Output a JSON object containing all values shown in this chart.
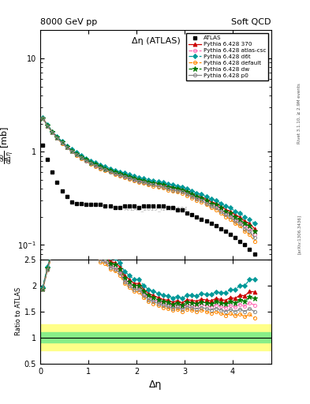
{
  "title_top_left": "8000 GeV pp",
  "title_top_right": "Soft QCD",
  "plot_title": "Δη (ATLAS)",
  "xlabel": "Δη",
  "right_label_top": "Rivet 3.1.10, ≥ 2.9M events",
  "right_label_bottom": "[arXiv:1306.3436]",
  "watermark": "ATLAS_2019_I1762584",
  "atlas_x": [
    0.05,
    0.15,
    0.25,
    0.35,
    0.45,
    0.55,
    0.65,
    0.75,
    0.85,
    0.95,
    1.05,
    1.15,
    1.25,
    1.35,
    1.45,
    1.55,
    1.65,
    1.75,
    1.85,
    1.95,
    2.05,
    2.15,
    2.25,
    2.35,
    2.45,
    2.55,
    2.65,
    2.75,
    2.85,
    2.95,
    3.05,
    3.15,
    3.25,
    3.35,
    3.45,
    3.55,
    3.65,
    3.75,
    3.85,
    3.95,
    4.05,
    4.15,
    4.25,
    4.35,
    4.45
  ],
  "atlas_y": [
    1.18,
    0.82,
    0.61,
    0.47,
    0.38,
    0.33,
    0.29,
    0.28,
    0.28,
    0.27,
    0.27,
    0.27,
    0.27,
    0.26,
    0.26,
    0.25,
    0.25,
    0.26,
    0.26,
    0.26,
    0.25,
    0.26,
    0.26,
    0.26,
    0.26,
    0.26,
    0.25,
    0.25,
    0.24,
    0.24,
    0.22,
    0.21,
    0.2,
    0.19,
    0.18,
    0.17,
    0.16,
    0.15,
    0.14,
    0.13,
    0.12,
    0.11,
    0.1,
    0.09,
    0.08
  ],
  "mc_x": [
    0.05,
    0.15,
    0.25,
    0.35,
    0.45,
    0.55,
    0.65,
    0.75,
    0.85,
    0.95,
    1.05,
    1.15,
    1.25,
    1.35,
    1.45,
    1.55,
    1.65,
    1.75,
    1.85,
    1.95,
    2.05,
    2.15,
    2.25,
    2.35,
    2.45,
    2.55,
    2.65,
    2.75,
    2.85,
    2.95,
    3.05,
    3.15,
    3.25,
    3.35,
    3.45,
    3.55,
    3.65,
    3.75,
    3.85,
    3.95,
    4.05,
    4.15,
    4.25,
    4.35,
    4.45
  ],
  "py370_y": [
    2.3,
    1.92,
    1.63,
    1.43,
    1.27,
    1.14,
    1.04,
    0.96,
    0.89,
    0.83,
    0.78,
    0.74,
    0.7,
    0.67,
    0.64,
    0.61,
    0.59,
    0.57,
    0.55,
    0.53,
    0.51,
    0.5,
    0.48,
    0.47,
    0.46,
    0.45,
    0.43,
    0.42,
    0.41,
    0.4,
    0.38,
    0.36,
    0.34,
    0.33,
    0.31,
    0.29,
    0.28,
    0.26,
    0.24,
    0.23,
    0.21,
    0.2,
    0.18,
    0.17,
    0.15
  ],
  "py_atlas_csc_y": [
    2.28,
    1.9,
    1.61,
    1.41,
    1.25,
    1.12,
    1.02,
    0.94,
    0.87,
    0.81,
    0.76,
    0.72,
    0.68,
    0.65,
    0.62,
    0.59,
    0.57,
    0.55,
    0.53,
    0.51,
    0.49,
    0.48,
    0.46,
    0.45,
    0.44,
    0.43,
    0.41,
    0.4,
    0.39,
    0.38,
    0.36,
    0.34,
    0.32,
    0.31,
    0.29,
    0.27,
    0.26,
    0.24,
    0.22,
    0.21,
    0.19,
    0.18,
    0.16,
    0.15,
    0.13
  ],
  "py_d6t_y": [
    2.32,
    1.94,
    1.65,
    1.45,
    1.29,
    1.16,
    1.06,
    0.98,
    0.91,
    0.85,
    0.8,
    0.76,
    0.72,
    0.69,
    0.66,
    0.63,
    0.61,
    0.59,
    0.57,
    0.55,
    0.53,
    0.52,
    0.5,
    0.49,
    0.48,
    0.47,
    0.45,
    0.44,
    0.43,
    0.42,
    0.4,
    0.38,
    0.36,
    0.35,
    0.33,
    0.31,
    0.3,
    0.28,
    0.26,
    0.25,
    0.23,
    0.22,
    0.2,
    0.19,
    0.17
  ],
  "py_default_y": [
    2.26,
    1.88,
    1.59,
    1.39,
    1.23,
    1.1,
    1.0,
    0.92,
    0.85,
    0.79,
    0.74,
    0.7,
    0.66,
    0.63,
    0.6,
    0.57,
    0.55,
    0.53,
    0.51,
    0.49,
    0.47,
    0.46,
    0.44,
    0.43,
    0.42,
    0.41,
    0.39,
    0.38,
    0.37,
    0.36,
    0.34,
    0.32,
    0.3,
    0.29,
    0.27,
    0.25,
    0.24,
    0.22,
    0.2,
    0.19,
    0.17,
    0.16,
    0.14,
    0.13,
    0.11
  ],
  "py_dw_y": [
    2.29,
    1.91,
    1.62,
    1.42,
    1.26,
    1.13,
    1.03,
    0.95,
    0.88,
    0.82,
    0.77,
    0.73,
    0.69,
    0.66,
    0.63,
    0.6,
    0.58,
    0.56,
    0.54,
    0.52,
    0.5,
    0.49,
    0.47,
    0.46,
    0.45,
    0.44,
    0.42,
    0.41,
    0.4,
    0.39,
    0.37,
    0.35,
    0.33,
    0.32,
    0.3,
    0.28,
    0.27,
    0.25,
    0.23,
    0.22,
    0.2,
    0.19,
    0.17,
    0.16,
    0.14
  ],
  "py_p0_y": [
    2.27,
    1.89,
    1.6,
    1.4,
    1.24,
    1.11,
    1.01,
    0.93,
    0.86,
    0.8,
    0.75,
    0.71,
    0.67,
    0.64,
    0.61,
    0.58,
    0.56,
    0.54,
    0.52,
    0.5,
    0.48,
    0.47,
    0.45,
    0.44,
    0.43,
    0.42,
    0.4,
    0.39,
    0.38,
    0.37,
    0.35,
    0.33,
    0.31,
    0.3,
    0.28,
    0.26,
    0.25,
    0.23,
    0.21,
    0.2,
    0.18,
    0.17,
    0.15,
    0.14,
    0.12
  ],
  "series_colors": [
    "#cc0000",
    "#ff69b4",
    "#009999",
    "#ff8800",
    "#007700",
    "#888888"
  ],
  "series_labels": [
    "Pythia 6.428 370",
    "Pythia 6.428 atlas-csc",
    "Pythia 6.428 d6t",
    "Pythia 6.428 default",
    "Pythia 6.428 dw",
    "Pythia 6.428 p0"
  ],
  "series_markers": [
    "^",
    "o",
    "D",
    "o",
    "*",
    "o"
  ],
  "series_linestyles": [
    "-",
    "--",
    "--",
    "--",
    "--",
    "-"
  ],
  "ratio_ylim": [
    0.5,
    2.5
  ],
  "ratio_yticks": [
    0.5,
    1.0,
    1.5,
    2.0,
    2.5
  ],
  "ratio_yticklabels": [
    "0.5",
    "1",
    "1.5",
    "2",
    "2.5"
  ],
  "main_ylim": [
    0.07,
    20
  ],
  "xlim": [
    0,
    4.8
  ],
  "green_band_lo": 0.9,
  "green_band_hi": 1.1,
  "yellow_band_lo": 0.75,
  "yellow_band_hi": 1.25
}
